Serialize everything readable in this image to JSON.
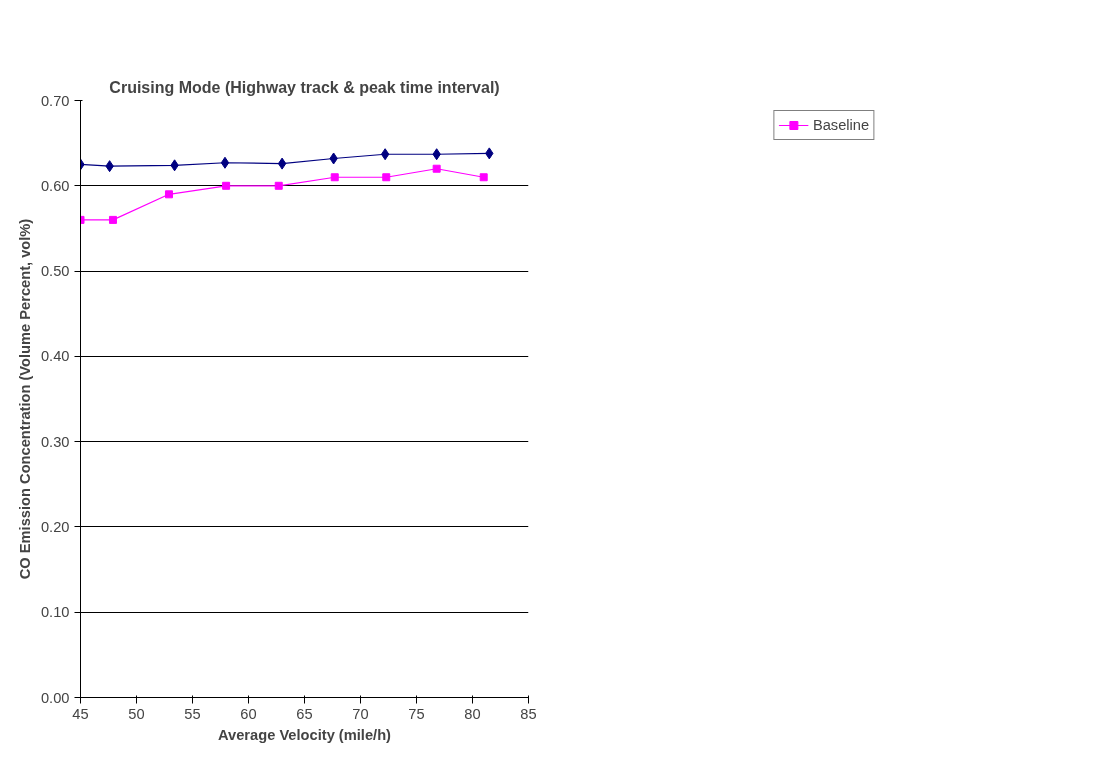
{
  "chart_data": {
    "type": "line",
    "title": "Cruising Mode (Highway track & peak time interval)",
    "xlabel": "Average Velocity (mile/h)",
    "ylabel": "CO Emission Concentration (Volume Percent, vol%)",
    "xlim": [
      45,
      85
    ],
    "xticks": [
      45,
      50,
      55,
      60,
      65,
      70,
      75,
      80,
      85
    ],
    "ylim": [
      0,
      0.7
    ],
    "yticks": [
      {
        "value": 0,
        "label": "0.00"
      },
      {
        "value": 0.1,
        "label": "0.10"
      },
      {
        "value": 0.2,
        "label": "0.20"
      },
      {
        "value": 0.3,
        "label": "0.30"
      },
      {
        "value": 0.4,
        "label": "0.40"
      },
      {
        "value": 0.5,
        "label": "0.50"
      },
      {
        "value": 0.6,
        "label": "0.60"
      },
      {
        "value": 0.7,
        "label": "0.70"
      }
    ],
    "grid": "y",
    "legend": "top right",
    "line_style": "solid",
    "series": [
      {
        "color": "#000080",
        "marker": "diamond",
        "x": [
          45,
          47.6,
          53.4,
          57.9,
          63.0,
          67.6,
          72.2,
          76.8,
          81.5
        ],
        "values": [
          0.625,
          0.623,
          0.624,
          0.627,
          0.626,
          0.632,
          0.637,
          0.637,
          0.638
        ]
      },
      {
        "name": "Baseline",
        "color": "#ff00ff",
        "marker": "square",
        "x": [
          45,
          47.9,
          52.9,
          58.0,
          62.7,
          67.7,
          72.3,
          76.8,
          81.0
        ],
        "values": [
          0.56,
          0.56,
          0.59,
          0.6,
          0.6,
          0.61,
          0.61,
          0.62,
          0.61
        ]
      }
    ]
  }
}
